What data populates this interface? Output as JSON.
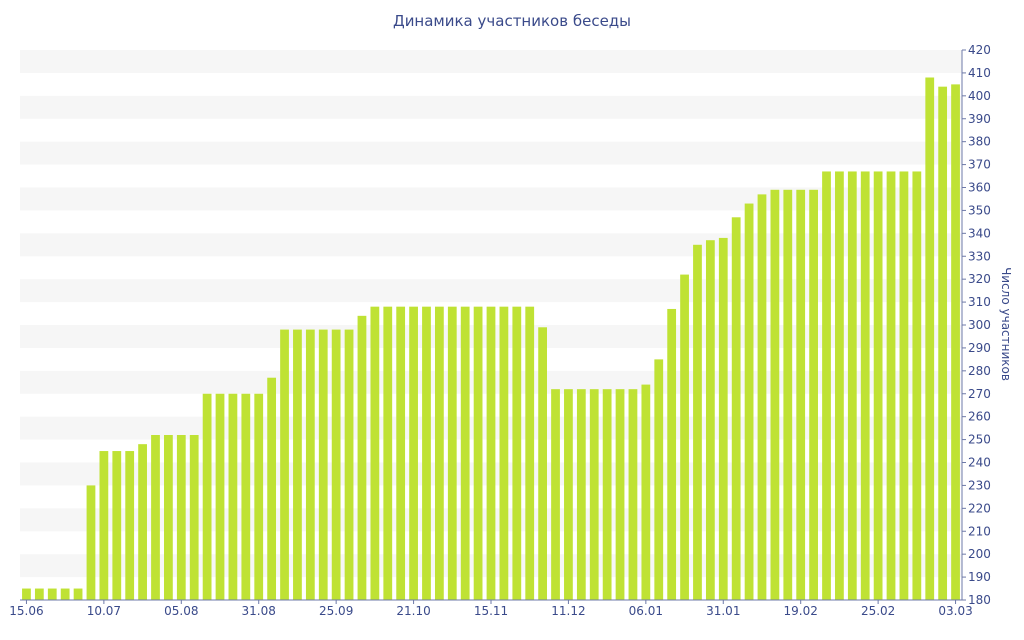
{
  "colors": {
    "bar": "#bfe234",
    "band": "#f6f6f6",
    "text": "#3a4a8a",
    "axis": "#6d79a8"
  },
  "chart_data": {
    "type": "bar",
    "title": "Динамика участников беседы",
    "ylabel": "Число участников",
    "xlabel": "",
    "ylim": [
      180,
      420
    ],
    "y_ticks": [
      180,
      190,
      200,
      210,
      220,
      230,
      240,
      250,
      260,
      270,
      280,
      290,
      300,
      310,
      320,
      330,
      340,
      350,
      360,
      370,
      380,
      390,
      400,
      410,
      420
    ],
    "grid": "alternating horizontal bands",
    "x_tick_labels": [
      {
        "label": "15.06",
        "index": 0
      },
      {
        "label": "10.07",
        "index": 6
      },
      {
        "label": "05.08",
        "index": 12
      },
      {
        "label": "31.08",
        "index": 18
      },
      {
        "label": "25.09",
        "index": 24
      },
      {
        "label": "21.10",
        "index": 30
      },
      {
        "label": "15.11",
        "index": 36
      },
      {
        "label": "11.12",
        "index": 42
      },
      {
        "label": "06.01",
        "index": 48
      },
      {
        "label": "31.01",
        "index": 54
      },
      {
        "label": "19.02",
        "index": 60
      },
      {
        "label": "25.02",
        "index": 66
      },
      {
        "label": "03.03",
        "index": 72
      }
    ],
    "values": [
      185,
      185,
      185,
      185,
      185,
      230,
      245,
      245,
      245,
      248,
      252,
      252,
      252,
      252,
      270,
      270,
      270,
      270,
      270,
      277,
      298,
      298,
      298,
      298,
      298,
      298,
      304,
      308,
      308,
      308,
      308,
      308,
      308,
      308,
      308,
      308,
      308,
      308,
      308,
      308,
      299,
      272,
      272,
      272,
      272,
      272,
      272,
      272,
      274,
      285,
      307,
      322,
      335,
      337,
      338,
      347,
      353,
      357,
      359,
      359,
      359,
      359,
      367,
      367,
      367,
      367,
      367,
      367,
      367,
      367,
      408,
      404,
      405
    ]
  }
}
